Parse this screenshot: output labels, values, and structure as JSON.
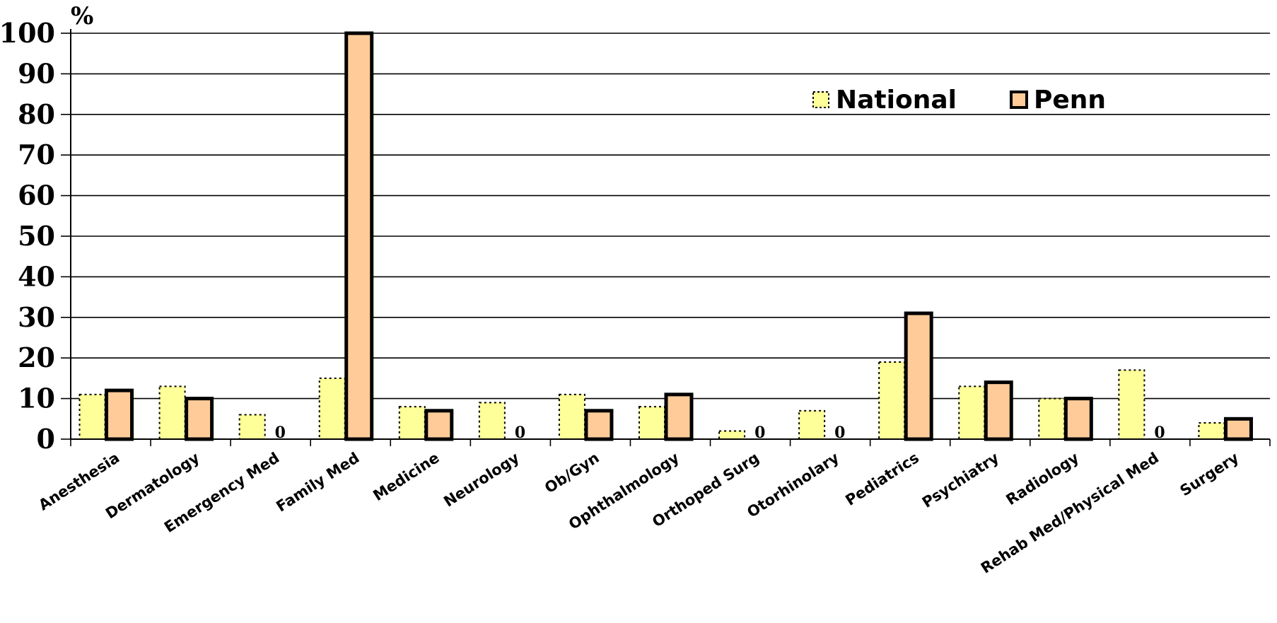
{
  "chart_data": {
    "type": "bar",
    "title": "",
    "xlabel": "",
    "ylabel": "%",
    "ylim": [
      0,
      100
    ],
    "yticks": [
      0,
      10,
      20,
      30,
      40,
      50,
      60,
      70,
      80,
      90,
      100
    ],
    "grid": true,
    "legend_position": "top-right",
    "categories": [
      "Anesthesia",
      "Dermatology",
      "Emergency Med",
      "Family Med",
      "Medicine",
      "Neurology",
      "Ob/Gyn",
      "Ophthalmology",
      "Orthoped Surg",
      "Otorhinolary",
      "Pediatrics",
      "Psychiatry",
      "Radiology",
      "Rehab Med/Physical Med",
      "Surgery"
    ],
    "series": [
      {
        "name": "National",
        "color": "#ffff99",
        "border": "dotted",
        "values": [
          11,
          13,
          6,
          15,
          8,
          9,
          11,
          8,
          2,
          7,
          19,
          13,
          10,
          17,
          4
        ]
      },
      {
        "name": "Penn",
        "color": "#ffcc99",
        "border": "solid",
        "values": [
          12,
          10,
          0,
          100,
          7,
          0,
          7,
          11,
          0,
          0,
          31,
          14,
          10,
          0,
          5
        ]
      }
    ],
    "zero_label": "0"
  }
}
